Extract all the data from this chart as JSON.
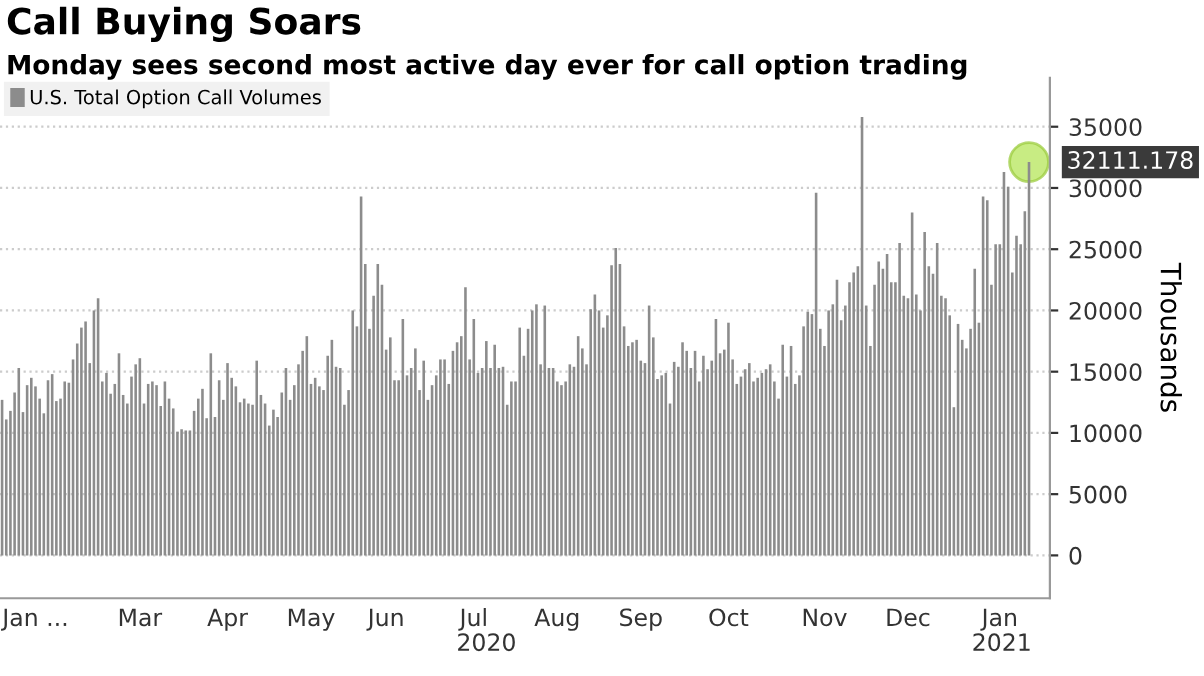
{
  "chart_data": {
    "type": "bar",
    "title": "Call Buying Soars",
    "subtitle": "Monday sees second most active day ever for call option trading",
    "ylabel": "Thousands",
    "annotations": [
      "2020",
      "2021"
    ],
    "categories": [
      null,
      null,
      null,
      null,
      null,
      null,
      null,
      null,
      "Jan ...",
      null,
      null,
      null,
      null,
      null,
      null,
      null,
      null,
      null,
      null,
      null,
      null,
      null,
      null,
      null,
      null,
      null,
      null,
      null,
      null,
      null,
      null,
      null,
      null,
      "Mar",
      null,
      null,
      null,
      null,
      null,
      null,
      null,
      null,
      null,
      null,
      null,
      null,
      null,
      null,
      null,
      null,
      null,
      null,
      null,
      null,
      "Apr",
      null,
      null,
      null,
      null,
      null,
      null,
      null,
      null,
      null,
      null,
      null,
      null,
      null,
      null,
      null,
      null,
      null,
      null,
      null,
      "May",
      null,
      null,
      null,
      null,
      null,
      null,
      null,
      null,
      null,
      null,
      null,
      null,
      null,
      null,
      null,
      null,
      null,
      "Jun",
      null,
      null,
      null,
      null,
      null,
      null,
      null,
      null,
      null,
      null,
      null,
      null,
      null,
      null,
      null,
      null,
      null,
      null,
      null,
      null,
      "Jul",
      null,
      null,
      null,
      null,
      null,
      null,
      null,
      null,
      null,
      null,
      null,
      null,
      null,
      null,
      null,
      null,
      null,
      null,
      null,
      "Aug",
      null,
      null,
      null,
      null,
      null,
      null,
      null,
      null,
      null,
      null,
      null,
      null,
      null,
      null,
      null,
      null,
      null,
      null,
      null,
      "Sep",
      null,
      null,
      null,
      null,
      null,
      null,
      null,
      null,
      null,
      null,
      null,
      null,
      null,
      null,
      null,
      null,
      null,
      null,
      null,
      null,
      "Oct",
      null,
      null,
      null,
      null,
      null,
      null,
      null,
      null,
      null,
      null,
      null,
      null,
      null,
      null,
      null,
      null,
      null,
      null,
      null,
      null,
      null,
      null,
      "Nov",
      null,
      null,
      null,
      null,
      null,
      null,
      null,
      null,
      null,
      null,
      null,
      null,
      null,
      null,
      null,
      null,
      null,
      null,
      null,
      "Dec",
      null,
      null,
      null,
      null,
      null,
      null,
      null,
      null,
      null,
      null,
      null,
      null,
      null,
      null,
      null,
      null,
      null,
      null,
      null,
      null,
      null,
      "Jan",
      null,
      null,
      null,
      null,
      null,
      null,
      null
    ],
    "series": [
      {
        "name": "U.S. Total Option Call Volumes",
        "color": "#8c8c8c",
        "values": [
          12700,
          11100,
          11800,
          13300,
          15300,
          11700,
          13900,
          14500,
          13800,
          12800,
          11600,
          14300,
          14800,
          12600,
          12800,
          14200,
          14100,
          16000,
          17300,
          18600,
          19100,
          15700,
          20000,
          21000,
          14200,
          14900,
          13200,
          14000,
          16500,
          13100,
          12400,
          14600,
          15600,
          16100,
          12400,
          14000,
          14200,
          13900,
          12200,
          14200,
          12800,
          12000,
          10100,
          10300,
          10200,
          10200,
          11800,
          12800,
          13600,
          11200,
          16500,
          11300,
          14300,
          12700,
          15700,
          14500,
          13800,
          12500,
          12800,
          12400,
          12300,
          15900,
          13100,
          12400,
          10600,
          11900,
          11300,
          13300,
          15300,
          12700,
          13900,
          15600,
          16700,
          17900,
          14000,
          14500,
          13800,
          13500,
          16300,
          17600,
          15400,
          15300,
          12300,
          13500,
          20000,
          18700,
          29300,
          23800,
          18500,
          21200,
          23800,
          22100,
          16800,
          17800,
          14300,
          14300,
          19300,
          14700,
          15300,
          16900,
          13500,
          15900,
          12700,
          13900,
          14700,
          16000,
          16000,
          14000,
          16700,
          17400,
          17900,
          21900,
          16000,
          19300,
          14900,
          15300,
          17500,
          15300,
          17200,
          15300,
          15400,
          12300,
          14200,
          14200,
          18600,
          16300,
          18500,
          20000,
          20500,
          15600,
          20400,
          15300,
          15300,
          14200,
          13900,
          14200,
          15600,
          15400,
          17900,
          16900,
          15600,
          20100,
          21300,
          20000,
          18600,
          19600,
          23700,
          25100,
          23800,
          18700,
          17100,
          17400,
          17600,
          15900,
          15700,
          20400,
          17800,
          14400,
          14700,
          14900,
          12400,
          15800,
          15400,
          17400,
          16700,
          15300,
          16700,
          14200,
          16300,
          15200,
          15900,
          19300,
          16500,
          16800,
          19000,
          16000,
          14000,
          14600,
          15200,
          15700,
          14200,
          14500,
          14900,
          15200,
          15600,
          14200,
          12800,
          17200,
          14600,
          17100,
          14000,
          14700,
          18700,
          19900,
          19700,
          29600,
          18500,
          17100,
          20000,
          20500,
          22500,
          19200,
          20400,
          22300,
          23100,
          23600,
          35800,
          20400,
          17100,
          22100,
          24000,
          23400,
          24600,
          22300,
          22300,
          25500,
          21200,
          21000,
          28000,
          21300,
          20000,
          26400,
          23600,
          23000,
          25500,
          21200,
          21000,
          19600,
          12100,
          18900,
          17600,
          16900,
          18500,
          23400,
          19000,
          29300,
          29000,
          22100,
          25400,
          25400,
          31300,
          30100,
          23100,
          26100,
          25400,
          28100,
          32111.178
        ]
      }
    ],
    "value_labels": [
      null,
      null,
      null,
      null,
      null,
      null,
      null,
      null,
      null,
      null,
      null,
      null,
      null,
      null,
      null,
      null,
      null,
      null,
      null,
      null,
      null,
      null,
      null,
      null,
      null,
      null,
      null,
      null,
      null,
      null,
      null,
      null,
      null,
      null,
      null,
      null,
      null,
      null,
      null,
      null,
      null,
      null,
      null,
      null,
      null,
      null,
      null,
      null,
      null,
      null,
      null,
      null,
      null,
      null,
      null,
      null,
      null,
      null,
      null,
      null,
      null,
      null,
      null,
      null,
      null,
      null,
      null,
      null,
      null,
      null,
      null,
      null,
      null,
      null,
      null,
      null,
      null,
      null,
      null,
      null,
      null,
      null,
      null,
      null,
      null,
      null,
      null,
      null,
      null,
      null,
      null,
      null,
      null,
      null,
      null,
      null,
      null,
      null,
      null,
      null,
      null,
      null,
      null,
      null,
      null,
      null,
      null,
      null,
      null,
      null,
      null,
      null,
      null,
      null,
      null,
      null,
      null,
      null,
      null,
      null,
      null,
      null,
      null,
      null,
      null,
      null,
      null,
      null,
      null,
      null,
      null,
      null,
      null,
      null,
      null,
      null,
      null,
      null,
      null,
      null,
      null,
      null,
      null,
      null,
      null,
      null,
      null,
      null,
      null,
      null,
      null,
      null,
      null,
      null,
      null,
      null,
      null,
      null,
      null,
      null,
      null,
      null,
      null,
      null,
      null,
      null,
      null,
      null,
      null,
      null,
      null,
      null,
      null,
      null,
      null,
      null,
      null,
      null,
      null,
      null,
      null,
      null,
      null,
      null,
      null,
      null,
      null,
      null,
      null,
      null,
      null,
      null,
      null,
      null,
      null,
      null,
      null,
      null,
      null,
      null,
      null,
      null,
      null,
      null,
      null,
      null,
      null,
      null,
      null,
      null,
      null,
      null,
      null,
      null,
      null,
      null,
      null,
      null,
      null,
      null,
      null,
      null,
      null,
      null,
      null,
      null,
      null,
      null,
      null,
      null,
      null,
      null,
      null,
      null,
      null,
      null,
      null,
      null,
      null,
      null,
      null,
      null,
      null,
      null,
      null,
      null,
      "32111.178"
    ],
    "ylim": [
      -3500,
      39000
    ],
    "yticks": [
      0,
      5000,
      10000,
      15000,
      20000,
      25000,
      30000,
      35000
    ],
    "grid": "y",
    "legend": "top left"
  }
}
